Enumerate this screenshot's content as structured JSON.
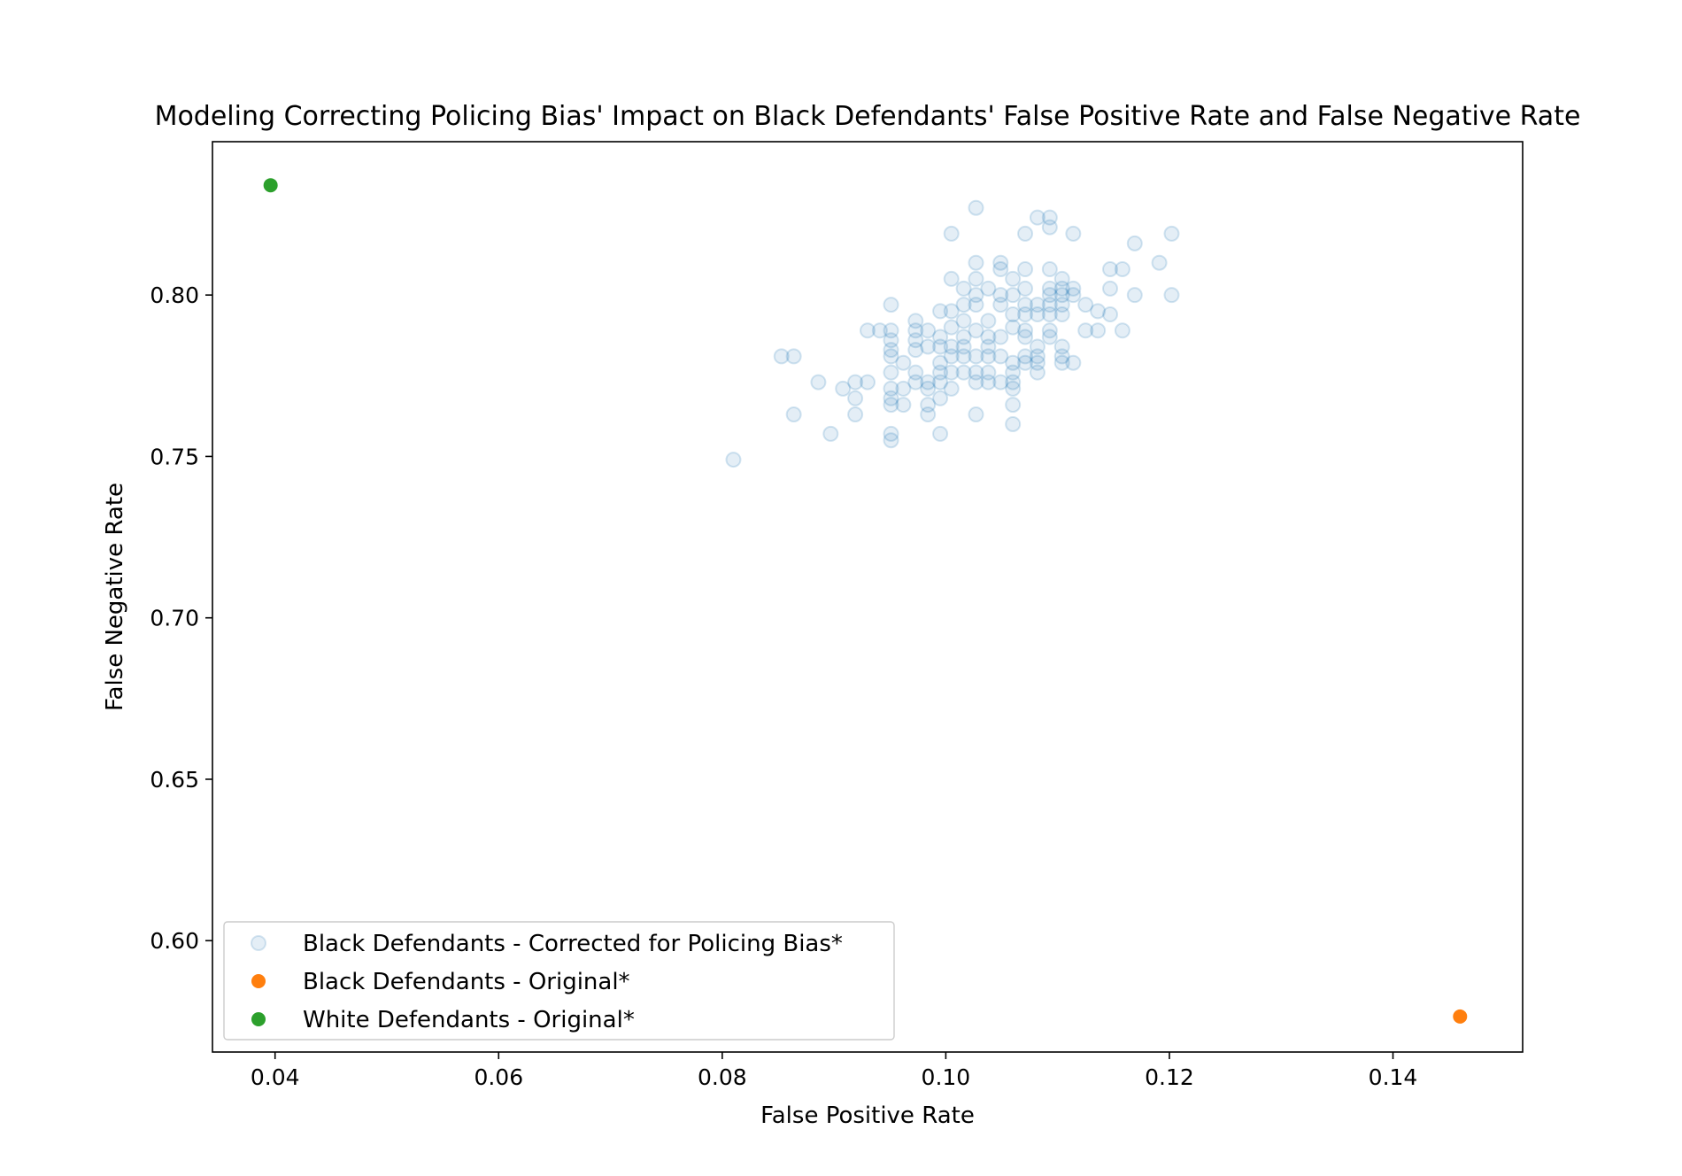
{
  "chart_data": {
    "type": "scatter",
    "title": "Modeling Correcting Policing Bias' Impact on Black Defendants' False Positive Rate and False Negative Rate",
    "xlabel": "False Positive Rate",
    "ylabel": "False Negative Rate",
    "xlim": [
      0.0344,
      0.1516
    ],
    "ylim": [
      0.5655,
      0.8475
    ],
    "xticks": [
      "0.04",
      "0.06",
      "0.08",
      "0.10",
      "0.12",
      "0.14"
    ],
    "yticks": [
      "0.60",
      "0.65",
      "0.70",
      "0.75",
      "0.80"
    ],
    "grid": false,
    "legend_position": "lower-left",
    "series": [
      {
        "name": "Black Defendants - Corrected for Policing Bias*",
        "color": "#1f77b4",
        "alpha": 0.12,
        "hollow": true,
        "points": [
          [
            0.081,
            0.749
          ],
          [
            0.0853,
            0.781
          ],
          [
            0.0864,
            0.781
          ],
          [
            0.0864,
            0.763
          ],
          [
            0.0886,
            0.773
          ],
          [
            0.0897,
            0.757
          ],
          [
            0.0908,
            0.771
          ],
          [
            0.0919,
            0.773
          ],
          [
            0.0919,
            0.768
          ],
          [
            0.0919,
            0.763
          ],
          [
            0.093,
            0.789
          ],
          [
            0.093,
            0.773
          ],
          [
            0.0941,
            0.789
          ],
          [
            0.0951,
            0.797
          ],
          [
            0.0951,
            0.789
          ],
          [
            0.0951,
            0.786
          ],
          [
            0.0951,
            0.783
          ],
          [
            0.0951,
            0.781
          ],
          [
            0.0951,
            0.776
          ],
          [
            0.0951,
            0.771
          ],
          [
            0.0951,
            0.768
          ],
          [
            0.0951,
            0.766
          ],
          [
            0.0951,
            0.757
          ],
          [
            0.0951,
            0.755
          ],
          [
            0.0962,
            0.779
          ],
          [
            0.0962,
            0.771
          ],
          [
            0.0962,
            0.766
          ],
          [
            0.0973,
            0.792
          ],
          [
            0.0973,
            0.789
          ],
          [
            0.0973,
            0.786
          ],
          [
            0.0973,
            0.783
          ],
          [
            0.0973,
            0.776
          ],
          [
            0.0973,
            0.773
          ],
          [
            0.0984,
            0.789
          ],
          [
            0.0984,
            0.784
          ],
          [
            0.0984,
            0.773
          ],
          [
            0.0984,
            0.771
          ],
          [
            0.0984,
            0.766
          ],
          [
            0.0984,
            0.763
          ],
          [
            0.0995,
            0.795
          ],
          [
            0.0995,
            0.787
          ],
          [
            0.0995,
            0.784
          ],
          [
            0.0995,
            0.779
          ],
          [
            0.0995,
            0.776
          ],
          [
            0.0995,
            0.773
          ],
          [
            0.0995,
            0.768
          ],
          [
            0.0995,
            0.757
          ],
          [
            0.1005,
            0.819
          ],
          [
            0.1005,
            0.805
          ],
          [
            0.1005,
            0.795
          ],
          [
            0.1005,
            0.79
          ],
          [
            0.1005,
            0.784
          ],
          [
            0.1005,
            0.781
          ],
          [
            0.1005,
            0.776
          ],
          [
            0.1005,
            0.771
          ],
          [
            0.1016,
            0.802
          ],
          [
            0.1016,
            0.797
          ],
          [
            0.1016,
            0.792
          ],
          [
            0.1016,
            0.787
          ],
          [
            0.1016,
            0.784
          ],
          [
            0.1016,
            0.781
          ],
          [
            0.1016,
            0.776
          ],
          [
            0.1027,
            0.827
          ],
          [
            0.1027,
            0.81
          ],
          [
            0.1027,
            0.805
          ],
          [
            0.1027,
            0.8
          ],
          [
            0.1027,
            0.797
          ],
          [
            0.1027,
            0.789
          ],
          [
            0.1027,
            0.781
          ],
          [
            0.1027,
            0.776
          ],
          [
            0.1027,
            0.773
          ],
          [
            0.1027,
            0.763
          ],
          [
            0.1038,
            0.802
          ],
          [
            0.1038,
            0.792
          ],
          [
            0.1038,
            0.787
          ],
          [
            0.1038,
            0.784
          ],
          [
            0.1038,
            0.781
          ],
          [
            0.1038,
            0.776
          ],
          [
            0.1038,
            0.773
          ],
          [
            0.1049,
            0.81
          ],
          [
            0.1049,
            0.808
          ],
          [
            0.1049,
            0.8
          ],
          [
            0.1049,
            0.797
          ],
          [
            0.1049,
            0.787
          ],
          [
            0.1049,
            0.781
          ],
          [
            0.1049,
            0.773
          ],
          [
            0.106,
            0.805
          ],
          [
            0.106,
            0.8
          ],
          [
            0.106,
            0.794
          ],
          [
            0.106,
            0.79
          ],
          [
            0.106,
            0.779
          ],
          [
            0.106,
            0.776
          ],
          [
            0.106,
            0.773
          ],
          [
            0.106,
            0.771
          ],
          [
            0.106,
            0.766
          ],
          [
            0.106,
            0.76
          ],
          [
            0.1071,
            0.819
          ],
          [
            0.1071,
            0.808
          ],
          [
            0.1071,
            0.802
          ],
          [
            0.1071,
            0.797
          ],
          [
            0.1071,
            0.794
          ],
          [
            0.1071,
            0.789
          ],
          [
            0.1071,
            0.787
          ],
          [
            0.1071,
            0.781
          ],
          [
            0.1071,
            0.779
          ],
          [
            0.1082,
            0.824
          ],
          [
            0.1082,
            0.797
          ],
          [
            0.1082,
            0.794
          ],
          [
            0.1082,
            0.784
          ],
          [
            0.1082,
            0.781
          ],
          [
            0.1082,
            0.779
          ],
          [
            0.1082,
            0.776
          ],
          [
            0.1093,
            0.824
          ],
          [
            0.1093,
            0.821
          ],
          [
            0.1093,
            0.808
          ],
          [
            0.1093,
            0.802
          ],
          [
            0.1093,
            0.8
          ],
          [
            0.1093,
            0.797
          ],
          [
            0.1093,
            0.794
          ],
          [
            0.1093,
            0.789
          ],
          [
            0.1093,
            0.787
          ],
          [
            0.1104,
            0.805
          ],
          [
            0.1104,
            0.802
          ],
          [
            0.1104,
            0.8
          ],
          [
            0.1104,
            0.797
          ],
          [
            0.1104,
            0.794
          ],
          [
            0.1104,
            0.784
          ],
          [
            0.1104,
            0.781
          ],
          [
            0.1104,
            0.779
          ],
          [
            0.1114,
            0.819
          ],
          [
            0.1114,
            0.802
          ],
          [
            0.1114,
            0.8
          ],
          [
            0.1114,
            0.779
          ],
          [
            0.1125,
            0.797
          ],
          [
            0.1125,
            0.789
          ],
          [
            0.1136,
            0.795
          ],
          [
            0.1136,
            0.789
          ],
          [
            0.1147,
            0.808
          ],
          [
            0.1147,
            0.802
          ],
          [
            0.1147,
            0.794
          ],
          [
            0.1158,
            0.808
          ],
          [
            0.1158,
            0.789
          ],
          [
            0.1169,
            0.816
          ],
          [
            0.1169,
            0.8
          ],
          [
            0.1191,
            0.81
          ],
          [
            0.1202,
            0.819
          ],
          [
            0.1202,
            0.8
          ]
        ]
      },
      {
        "name": "Black Defendants - Original*",
        "color": "#ff7f0e",
        "alpha": 1,
        "hollow": false,
        "points": [
          [
            0.146,
            0.5765
          ]
        ]
      },
      {
        "name": "White Defendants - Original*",
        "color": "#2ca02c",
        "alpha": 1,
        "hollow": false,
        "points": [
          [
            0.0396,
            0.834
          ]
        ]
      }
    ]
  }
}
